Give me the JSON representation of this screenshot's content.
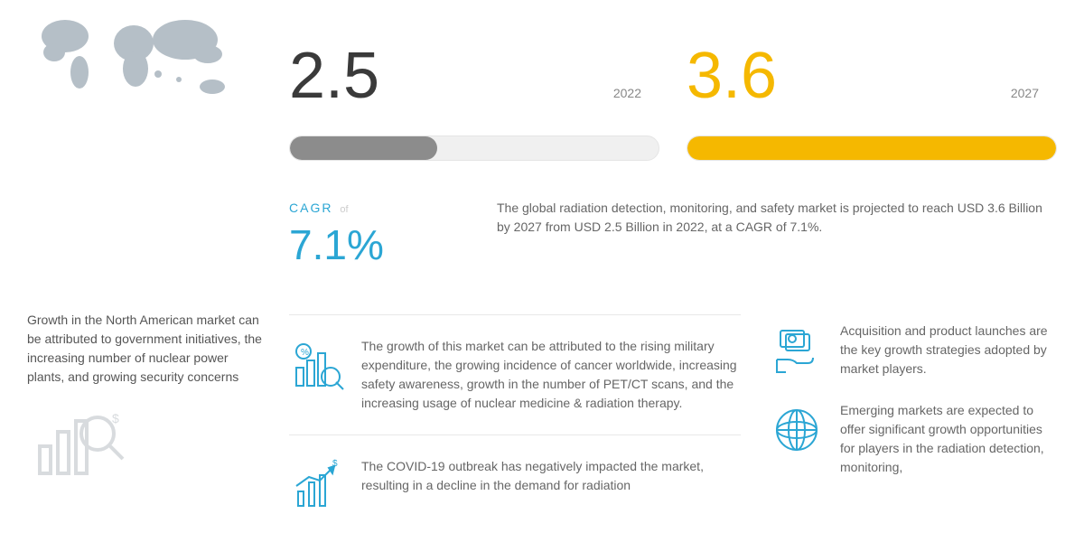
{
  "colors": {
    "accent_blue": "#2ba6d4",
    "accent_yellow": "#f5b800",
    "bar_grey": "#8c8c8c",
    "pill_bg": "#f0f0f0",
    "text_primary": "#3a3a3a",
    "text_body": "#666666"
  },
  "typography": {
    "big_number_fontsize": 72,
    "cagr_fontsize": 46,
    "body_fontsize": 14
  },
  "metrics": {
    "left": {
      "value": "2.5",
      "year": "2022",
      "fill_pct": 40,
      "fill_color": "#8c8c8c"
    },
    "right": {
      "value": "3.6",
      "year": "2027",
      "fill_pct": 100,
      "fill_color": "#f5b800"
    }
  },
  "cagr": {
    "label": "CAGR",
    "of": "of",
    "value": "7.1%",
    "description": "The global radiation detection, monitoring, and safety market is projected to reach USD  3.6  Billion by 2027 from USD 2.5 Billion in 2022, at a CAGR of 7.1%."
  },
  "left_blurbs": {
    "north_america": "Growth in the North American market can be attributed to government initiatives, the increasing number of nuclear power plants, and growing security concerns"
  },
  "mid_blurbs": {
    "growth_drivers": "The growth of this market can be attributed to the rising military expenditure, the growing incidence of cancer worldwide, increasing safety awareness, growth in the number of PET/CT scans, and the increasing usage of nuclear medicine & radiation therapy.",
    "covid": "The COVID-19 outbreak has negatively impacted the market, resulting in a decline in the demand for radiation"
  },
  "right_blurbs": {
    "strategies": "Acquisition and product launches are the key growth strategies adopted by market players.",
    "emerging": "Emerging markets are expected to offer significant growth opportunities for players in the radiation detection, monitoring,"
  }
}
